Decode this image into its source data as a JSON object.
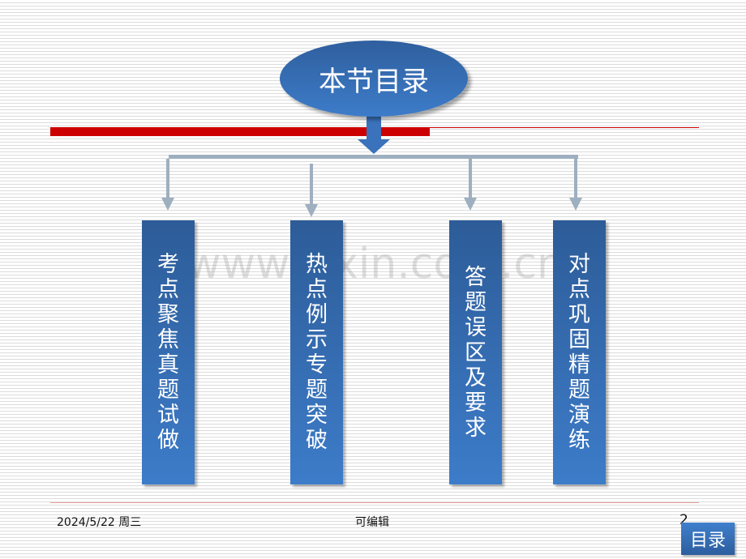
{
  "title": "本节目录",
  "watermark": "www.zixin.com.cn",
  "items": [
    {
      "label": "考点聚焦真题试做"
    },
    {
      "label": "热点例示专题突破"
    },
    {
      "label": "答题误区及要求"
    },
    {
      "label": "对点巩固精题演练"
    }
  ],
  "footer": {
    "date": "2024/5/22 周三",
    "center": "可编辑",
    "page": "2"
  },
  "toc_button": "目录",
  "colors": {
    "accent_red": "#cc0000",
    "box_blue": "#3d7cc9",
    "connector": "#9aaabb"
  }
}
